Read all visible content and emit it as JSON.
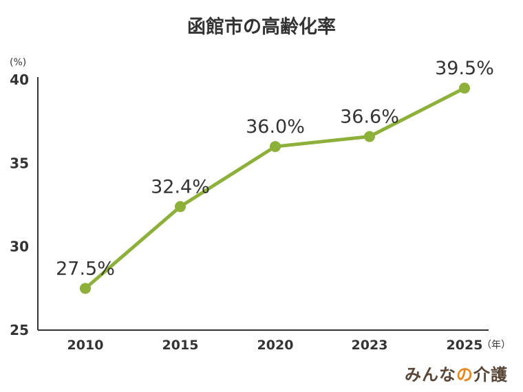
{
  "chart_data": {
    "type": "line",
    "title": "函館市の高齢化率",
    "y_unit": "(%)",
    "x_unit": "（年）",
    "categories": [
      "2010",
      "2015",
      "2020",
      "2023",
      "2025"
    ],
    "values": [
      27.5,
      32.4,
      36.0,
      36.6,
      39.5
    ],
    "data_labels": [
      "27.5%",
      "32.4%",
      "36.0%",
      "36.6%",
      "39.5%"
    ],
    "ylim": [
      25,
      40
    ],
    "yticks": [
      "25",
      "30",
      "35",
      "40"
    ],
    "grid": false,
    "colors": {
      "line": "#8cb03a",
      "axis": "#333333"
    }
  },
  "brand": {
    "part1": "みんな",
    "part2": "の",
    "part3": "介護"
  }
}
